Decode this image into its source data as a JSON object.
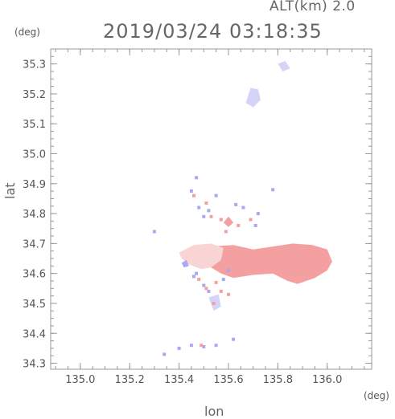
{
  "header": {
    "altitude_label": "ALT(km) 2.0",
    "datetime": "2019/03/24 03:18:35"
  },
  "chart_data": {
    "type": "heatmap",
    "xlabel": "lon",
    "ylabel": "lat",
    "x_unit": "(deg)",
    "y_unit": "(deg)",
    "xlim": [
      134.88,
      136.18
    ],
    "ylim": [
      34.28,
      35.35
    ],
    "x_ticks": [
      135.0,
      135.2,
      135.4,
      135.6,
      135.8,
      136.0
    ],
    "x_tick_labels": [
      "135.0",
      "135.2",
      "135.4",
      "135.6",
      "135.8",
      "136.0"
    ],
    "y_ticks": [
      34.3,
      34.4,
      34.5,
      34.6,
      34.7,
      34.8,
      34.9,
      35.0,
      35.1,
      35.2,
      35.3
    ],
    "y_tick_labels": [
      "34.3",
      "34.4",
      "34.5",
      "34.6",
      "34.7",
      "34.8",
      "34.9",
      "35.0",
      "35.1",
      "35.2",
      "35.3"
    ],
    "grid": false,
    "colors": {
      "positive": "#f4a0a0",
      "positive_light": "#f8d4d4",
      "negative": "#a8a8f4",
      "negative_light": "#d4d4f8",
      "axis": "#999999"
    },
    "regions": [
      {
        "sign": "positive",
        "shade": "main",
        "points": [
          [
            135.52,
            34.69
          ],
          [
            135.62,
            34.695
          ],
          [
            135.7,
            34.68
          ],
          [
            135.78,
            34.69
          ],
          [
            135.86,
            34.7
          ],
          [
            135.94,
            34.695
          ],
          [
            136.0,
            34.68
          ],
          [
            136.02,
            34.64
          ],
          [
            136.0,
            34.61
          ],
          [
            135.95,
            34.585
          ],
          [
            135.88,
            34.565
          ],
          [
            135.84,
            34.575
          ],
          [
            135.78,
            34.6
          ],
          [
            135.7,
            34.595
          ],
          [
            135.62,
            34.585
          ],
          [
            135.57,
            34.6
          ],
          [
            135.53,
            34.62
          ]
        ]
      },
      {
        "sign": "positive",
        "shade": "light",
        "points": [
          [
            135.4,
            34.67
          ],
          [
            135.46,
            34.695
          ],
          [
            135.53,
            34.7
          ],
          [
            135.58,
            34.685
          ],
          [
            135.57,
            34.645
          ],
          [
            135.53,
            34.62
          ],
          [
            135.49,
            34.615
          ],
          [
            135.44,
            34.63
          ],
          [
            135.41,
            34.65
          ]
        ]
      },
      {
        "sign": "negative",
        "shade": "light",
        "points": [
          [
            135.67,
            35.17
          ],
          [
            135.69,
            35.22
          ],
          [
            135.72,
            35.215
          ],
          [
            135.73,
            35.18
          ],
          [
            135.7,
            35.155
          ]
        ]
      },
      {
        "sign": "negative",
        "shade": "light",
        "points": [
          [
            135.8,
            35.3
          ],
          [
            135.83,
            35.31
          ],
          [
            135.85,
            35.285
          ],
          [
            135.82,
            35.275
          ]
        ]
      },
      {
        "sign": "negative",
        "shade": "light",
        "points": [
          [
            135.52,
            34.52
          ],
          [
            135.56,
            34.53
          ],
          [
            135.57,
            34.49
          ],
          [
            135.54,
            34.475
          ]
        ]
      },
      {
        "sign": "negative",
        "shade": "main",
        "points": [
          [
            135.41,
            34.635
          ],
          [
            135.43,
            34.645
          ],
          [
            135.44,
            34.625
          ],
          [
            135.42,
            34.62
          ]
        ]
      },
      {
        "sign": "positive",
        "shade": "main",
        "points": [
          [
            135.58,
            34.77
          ],
          [
            135.6,
            34.79
          ],
          [
            135.62,
            34.77
          ],
          [
            135.6,
            34.755
          ]
        ]
      }
    ],
    "speckles": [
      {
        "sign": "negative",
        "points": [
          [
            135.45,
            34.875
          ],
          [
            135.48,
            34.82
          ],
          [
            135.5,
            34.79
          ],
          [
            135.52,
            34.81
          ],
          [
            135.55,
            34.86
          ],
          [
            135.63,
            34.83
          ],
          [
            135.66,
            34.82
          ],
          [
            135.71,
            34.76
          ],
          [
            135.72,
            34.8
          ],
          [
            135.78,
            34.88
          ],
          [
            135.47,
            34.92
          ],
          [
            135.3,
            34.74
          ],
          [
            135.34,
            34.33
          ],
          [
            135.4,
            34.35
          ],
          [
            135.45,
            34.36
          ],
          [
            135.5,
            34.355
          ],
          [
            135.55,
            34.36
          ],
          [
            135.62,
            34.38
          ],
          [
            135.5,
            34.56
          ],
          [
            135.58,
            34.58
          ],
          [
            135.52,
            34.54
          ],
          [
            135.6,
            34.61
          ],
          [
            135.47,
            34.6
          ],
          [
            135.46,
            34.59
          ]
        ]
      },
      {
        "sign": "positive",
        "points": [
          [
            135.46,
            34.86
          ],
          [
            135.51,
            34.835
          ],
          [
            135.53,
            34.79
          ],
          [
            135.57,
            34.78
          ],
          [
            135.59,
            34.74
          ],
          [
            135.64,
            34.76
          ],
          [
            135.69,
            34.78
          ],
          [
            135.51,
            34.55
          ],
          [
            135.54,
            34.5
          ],
          [
            135.57,
            34.54
          ],
          [
            135.6,
            34.53
          ],
          [
            135.48,
            34.58
          ],
          [
            135.49,
            34.36
          ],
          [
            135.55,
            34.57
          ]
        ]
      }
    ]
  }
}
